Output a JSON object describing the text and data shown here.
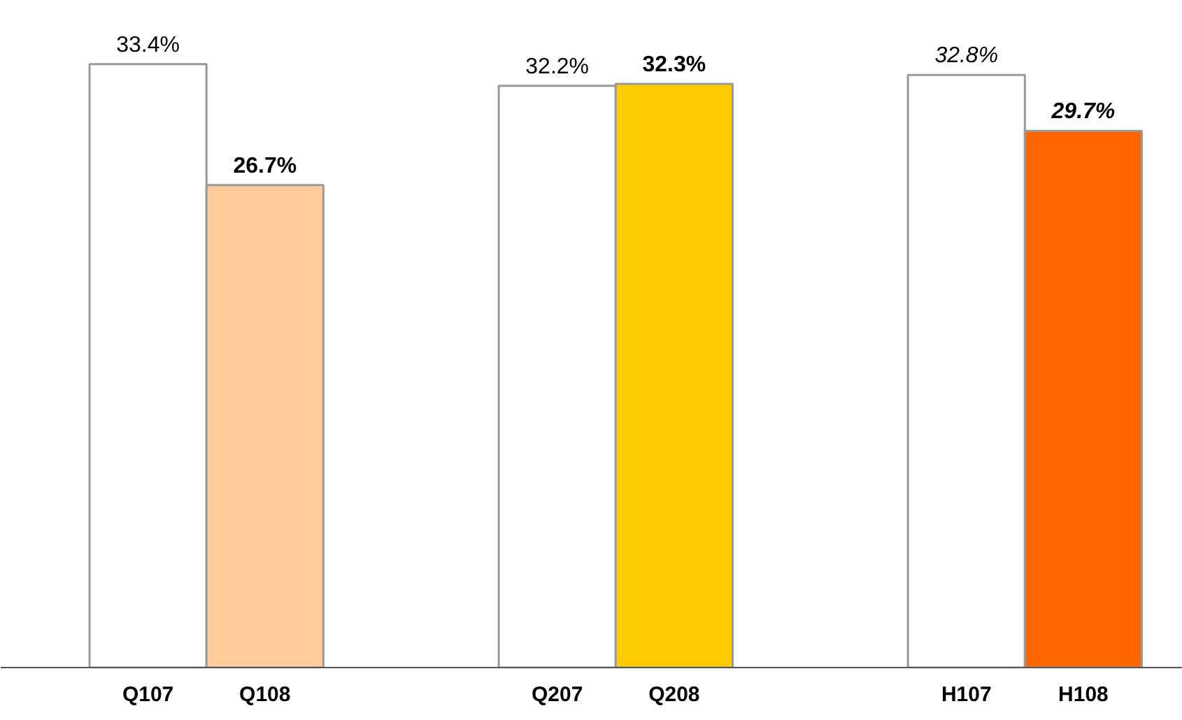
{
  "chart_data": {
    "type": "bar",
    "categories": [
      "Q107",
      "Q108",
      "Q207",
      "Q208",
      "H107",
      "H108"
    ],
    "values": [
      33.4,
      26.7,
      32.2,
      32.3,
      32.8,
      29.7
    ],
    "value_labels": [
      "33.4%",
      "26.7%",
      "32.2%",
      "32.3%",
      "32.8%",
      "29.7%"
    ],
    "colors": [
      "#ffffff",
      "#ffcc99",
      "#ffffff",
      "#ffcc00",
      "#ffffff",
      "#ff6600"
    ]
  }
}
